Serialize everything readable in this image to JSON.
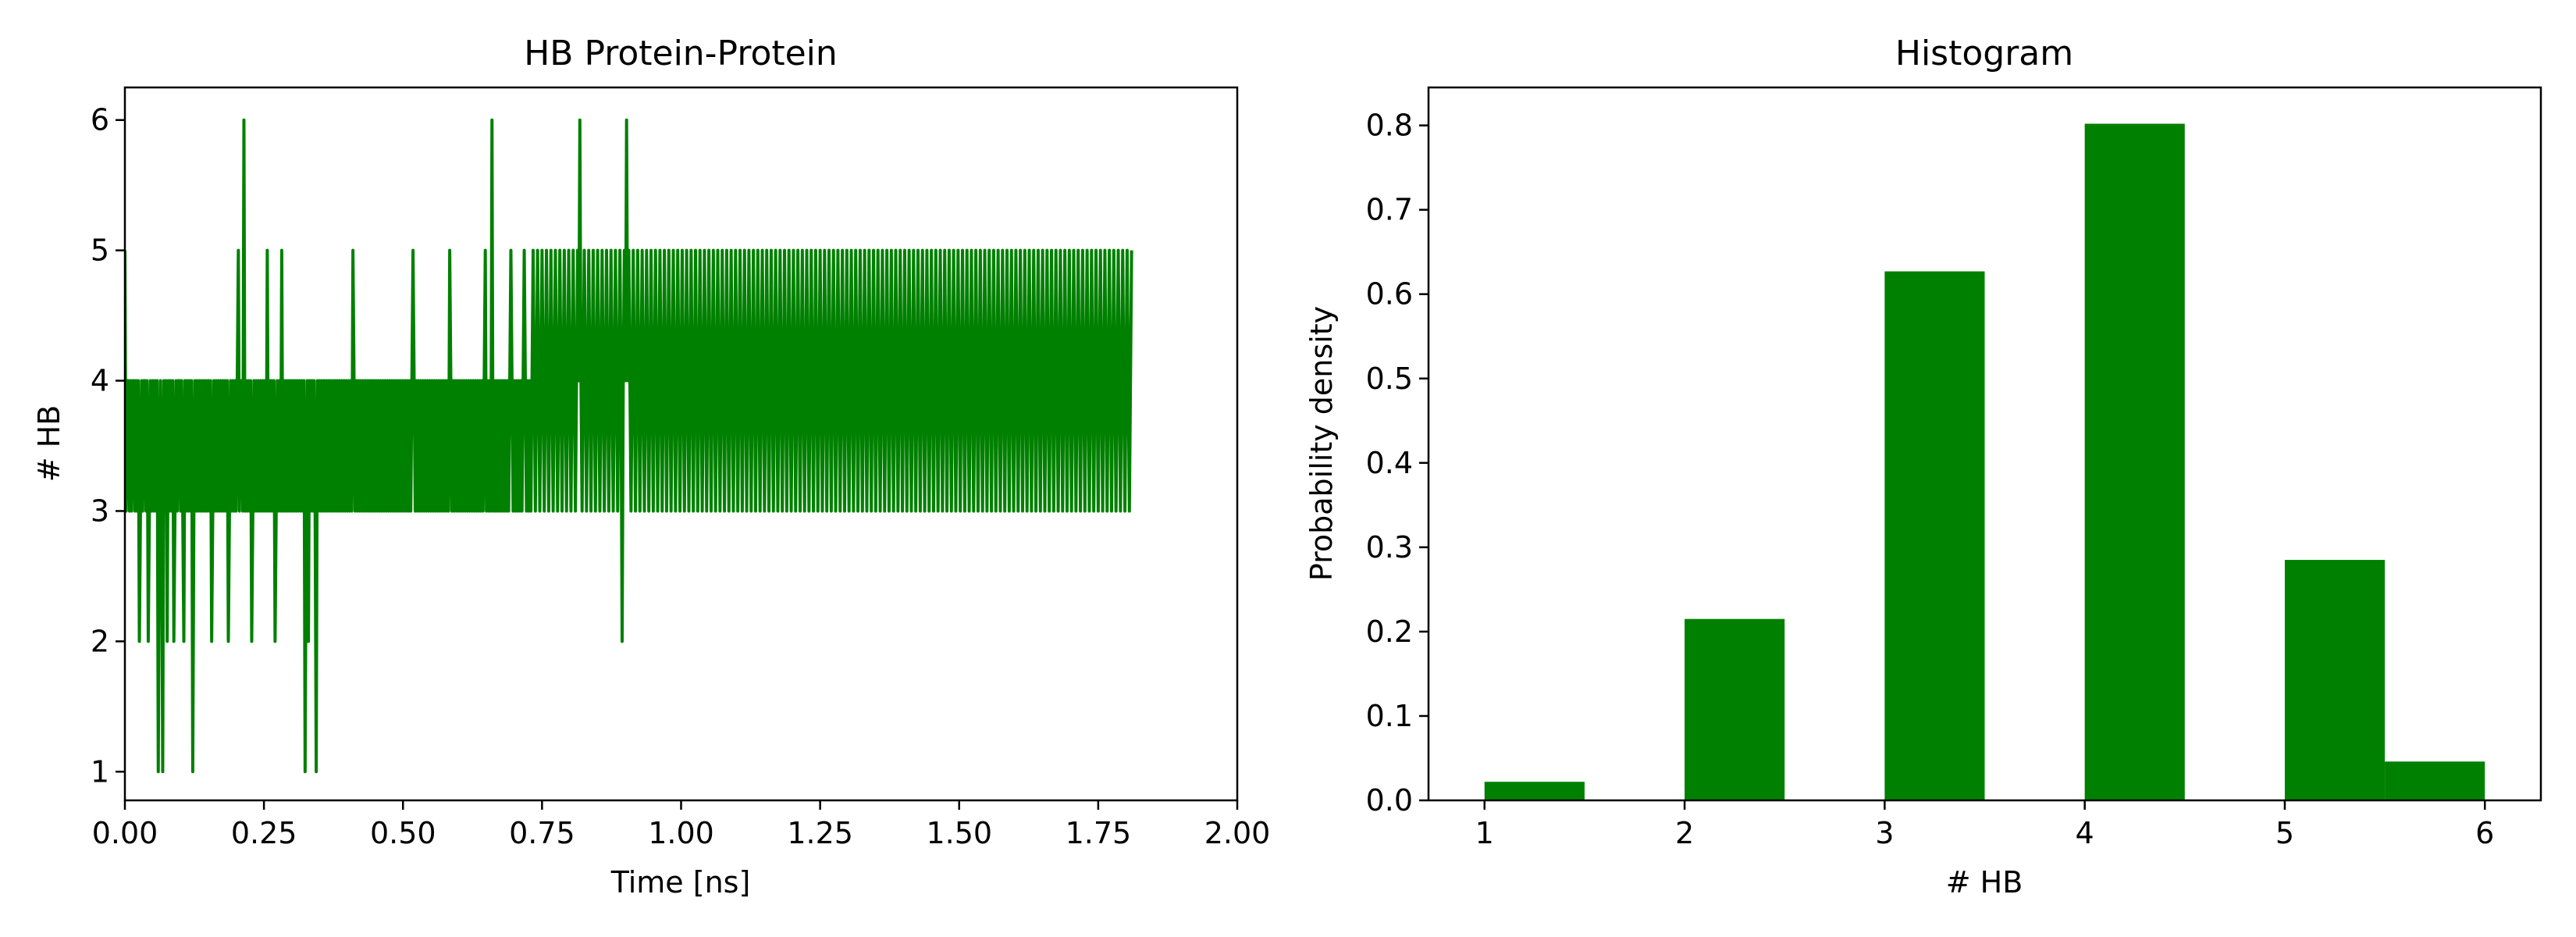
{
  "chart_data": [
    {
      "type": "line",
      "title": "HB Protein-Protein",
      "xlabel": "Time [ns]",
      "ylabel": "# HB",
      "xlim": [
        0,
        2.0
      ],
      "ylim": [
        0.78,
        6.25
      ],
      "xticks": [
        0.0,
        0.25,
        0.5,
        0.75,
        1.0,
        1.25,
        1.5,
        1.75,
        2.0
      ],
      "xtick_labels": [
        "0.00",
        "0.25",
        "0.50",
        "0.75",
        "1.00",
        "1.25",
        "1.50",
        "1.75",
        "2.00"
      ],
      "yticks": [
        1,
        2,
        3,
        4,
        5,
        6
      ],
      "ytick_labels": [
        "1",
        "2",
        "3",
        "4",
        "5",
        "6"
      ],
      "grid": false,
      "color": "#008000",
      "x_step": 0.002,
      "x_start": 0.0,
      "series": [
        {
          "values": [
            5,
            3,
            4,
            4,
            3,
            4,
            3,
            4,
            4,
            3,
            4,
            3,
            4,
            2,
            3,
            4,
            3,
            4,
            4,
            3,
            4,
            2,
            3,
            4,
            3,
            4,
            3,
            4,
            3,
            4,
            1,
            3,
            4,
            3,
            1,
            4,
            3,
            4,
            2,
            4,
            3,
            4,
            3,
            4,
            2,
            3,
            4,
            3,
            4,
            4,
            3,
            4,
            3,
            2,
            4,
            3,
            4,
            3,
            4,
            3,
            4,
            1,
            3,
            4,
            3,
            4,
            3,
            4,
            3,
            4,
            3,
            4,
            3,
            4,
            3,
            4,
            3,
            4,
            2,
            3,
            4,
            3,
            4,
            3,
            4,
            3,
            4,
            3,
            4,
            3,
            4,
            3,
            4,
            2,
            3,
            4,
            3,
            4,
            3,
            4,
            3,
            4,
            5,
            3,
            4,
            4,
            3,
            6,
            3,
            4,
            3,
            4,
            3,
            4,
            2,
            3,
            4,
            3,
            4,
            3,
            4,
            3,
            4,
            3,
            4,
            3,
            4,
            3,
            5,
            3,
            4,
            3,
            4,
            3,
            4,
            2,
            3,
            4,
            3,
            4,
            3,
            5,
            3,
            4,
            3,
            4,
            3,
            4,
            3,
            4,
            3,
            4,
            3,
            4,
            3,
            4,
            3,
            4,
            3,
            4,
            3,
            4,
            1,
            3,
            4,
            2,
            4,
            3,
            4,
            3,
            4,
            3,
            1,
            4,
            3,
            4,
            3,
            4,
            3,
            4,
            3,
            4,
            3,
            4,
            3,
            4,
            3,
            4,
            3,
            4,
            3,
            4,
            3,
            4,
            3,
            4,
            3,
            4,
            3,
            4,
            3,
            4,
            3,
            4,
            3,
            5,
            4,
            3,
            4,
            3,
            4,
            3,
            4,
            3,
            4,
            3,
            4,
            3,
            4,
            3,
            4,
            3,
            4,
            3,
            4,
            3,
            4,
            3,
            4,
            3,
            4,
            3,
            4,
            3,
            4,
            3,
            4,
            3,
            4,
            3,
            4,
            3,
            4,
            3,
            4,
            3,
            4,
            3,
            4,
            3,
            4,
            3,
            4,
            3,
            4,
            3,
            4,
            3,
            4,
            5,
            4,
            3,
            4,
            3,
            4,
            3,
            4,
            3,
            4,
            3,
            4,
            3,
            4,
            3,
            4,
            3,
            4,
            3,
            4,
            3,
            4,
            3,
            4,
            3,
            4,
            3,
            4,
            3,
            4,
            3,
            4,
            3,
            5,
            4,
            3,
            4,
            3,
            4,
            3,
            4,
            3,
            4,
            3,
            4,
            3,
            4,
            3,
            4,
            3,
            4,
            3,
            4,
            3,
            4,
            3,
            4,
            3,
            4,
            3,
            4,
            3,
            4,
            3,
            4,
            5,
            3,
            4,
            3,
            4,
            3,
            6,
            3,
            4,
            3,
            4,
            3,
            4,
            3,
            4,
            3,
            4,
            3,
            4,
            3,
            4,
            3,
            4,
            5,
            4,
            3,
            4,
            3,
            4,
            3,
            4,
            3,
            4,
            3,
            4,
            5,
            4,
            3,
            4,
            3,
            4,
            3,
            4,
            5,
            4,
            3,
            4,
            5,
            4,
            3,
            4,
            5,
            4,
            3,
            4,
            5,
            4,
            3,
            4,
            5,
            4,
            3,
            4,
            5,
            4,
            3,
            4,
            5,
            4,
            3,
            4,
            5,
            4,
            3,
            4,
            5,
            4,
            3,
            4,
            5,
            4,
            3,
            4,
            5,
            4,
            6,
            4,
            3,
            4,
            5,
            4,
            3,
            4,
            5,
            4,
            3,
            4,
            5,
            4,
            3,
            4,
            5,
            4,
            3,
            4,
            5,
            4,
            3,
            4,
            5,
            4,
            3,
            4,
            5,
            4,
            3,
            4,
            5,
            4,
            3,
            4,
            5,
            4,
            2,
            4,
            5,
            4,
            6,
            4,
            5,
            4,
            3,
            4,
            5,
            4,
            3,
            4,
            5,
            4,
            3,
            4,
            5,
            4,
            3,
            4,
            5,
            4,
            3,
            4,
            5,
            4,
            3,
            4,
            5,
            4,
            3,
            4,
            5,
            4,
            3,
            4,
            5,
            4,
            3,
            4,
            5,
            4,
            3,
            4,
            5,
            4,
            3,
            4,
            5,
            4,
            3,
            4,
            5,
            4,
            3,
            4,
            5,
            4,
            3,
            4,
            5,
            4,
            3,
            4,
            5,
            4,
            3,
            4,
            5,
            4,
            3,
            4,
            5,
            4,
            3,
            4,
            5,
            4,
            3,
            4,
            5,
            4,
            3,
            4,
            5,
            4,
            3,
            4,
            5,
            4,
            3,
            4,
            5,
            4,
            3,
            4,
            5,
            4,
            3,
            4,
            5,
            4,
            3,
            4,
            5,
            4,
            3,
            4,
            5,
            4,
            3,
            4,
            5,
            4,
            3,
            4,
            5,
            4,
            3,
            4,
            5,
            4,
            3,
            4,
            5,
            4,
            3,
            4,
            5,
            4,
            3,
            4,
            5,
            4,
            3,
            4,
            5,
            4,
            3,
            4,
            5,
            4,
            3,
            4,
            5,
            4,
            3,
            4,
            5,
            4,
            3,
            4,
            5,
            4,
            3,
            4,
            5,
            4,
            3,
            4,
            5,
            4,
            3,
            4,
            5,
            4,
            3,
            4,
            5,
            4,
            3,
            4,
            5,
            4,
            3,
            4,
            5,
            4,
            3,
            4,
            5,
            4,
            3,
            4,
            5,
            4,
            3,
            4,
            5,
            4,
            3,
            4,
            5,
            4,
            3,
            4,
            5,
            4,
            3,
            4,
            5,
            4,
            3,
            4,
            5,
            4,
            3,
            4,
            5,
            4,
            3,
            4,
            5,
            4,
            3,
            4,
            5,
            4,
            3,
            4,
            5,
            4,
            3,
            4,
            5,
            4,
            3,
            4,
            5,
            4,
            3,
            4,
            5,
            4,
            3,
            4,
            5,
            4,
            3,
            4,
            5,
            4,
            3,
            4,
            5,
            4,
            3,
            4,
            5,
            4,
            3,
            4,
            5,
            4,
            3,
            4,
            5,
            4,
            3,
            4,
            5,
            4,
            3,
            4,
            5,
            4,
            3,
            4,
            5,
            4,
            3,
            4,
            5,
            4,
            3,
            4,
            5,
            4,
            3,
            4,
            5,
            4,
            3,
            4,
            5,
            4,
            3,
            4,
            5,
            4,
            3,
            4,
            5,
            4,
            3,
            4,
            5,
            4,
            3,
            4,
            5,
            4,
            3,
            4,
            5,
            4,
            3,
            4,
            5,
            4,
            3,
            4,
            5,
            4,
            3,
            4,
            5,
            4,
            3,
            4,
            5,
            4,
            3,
            4,
            5,
            4,
            3,
            4,
            5,
            4,
            3,
            4,
            5,
            4,
            3,
            4,
            5,
            4,
            3,
            4,
            5,
            4,
            3,
            4,
            5,
            4,
            3,
            4,
            5,
            4,
            3,
            4,
            5,
            4,
            3,
            4,
            5,
            4,
            3,
            4,
            5,
            4,
            3,
            4,
            5,
            4,
            3,
            4,
            5,
            4,
            3,
            4,
            5,
            4,
            3,
            4,
            5,
            4,
            3,
            4,
            5,
            4,
            3,
            4,
            5,
            4,
            3,
            4,
            5,
            4,
            3,
            4,
            5,
            4,
            3,
            4,
            5,
            4,
            3,
            4,
            5,
            4,
            3,
            4,
            5,
            4,
            3,
            4,
            5,
            4,
            3,
            4,
            5,
            4,
            3,
            4,
            5,
            4,
            3,
            4,
            5,
            4,
            3,
            4,
            5,
            4,
            3,
            4,
            5,
            4,
            3,
            4,
            5,
            4,
            3,
            4,
            5,
            4,
            3,
            4,
            5,
            4,
            3,
            4,
            5,
            4,
            3,
            4,
            5,
            4,
            3,
            4,
            5,
            4,
            3,
            4,
            5
          ]
        }
      ]
    },
    {
      "type": "bar",
      "title": "Histogram",
      "xlabel": "# HB",
      "ylabel": "Probability density",
      "xlim": [
        0.72,
        6.28
      ],
      "ylim": [
        0,
        0.845
      ],
      "xticks": [
        1,
        2,
        3,
        4,
        5,
        6
      ],
      "xtick_labels": [
        "1",
        "2",
        "3",
        "4",
        "5",
        "6"
      ],
      "yticks": [
        0.0,
        0.1,
        0.2,
        0.3,
        0.4,
        0.5,
        0.6,
        0.7,
        0.8
      ],
      "ytick_labels": [
        "0.0",
        "0.1",
        "0.2",
        "0.3",
        "0.4",
        "0.5",
        "0.6",
        "0.7",
        "0.8"
      ],
      "grid": false,
      "color": "#008000",
      "bins": [
        {
          "x0": 1.0,
          "x1": 1.5,
          "value": 0.022
        },
        {
          "x0": 2.0,
          "x1": 2.5,
          "value": 0.215
        },
        {
          "x0": 3.0,
          "x1": 3.5,
          "value": 0.627
        },
        {
          "x0": 4.0,
          "x1": 4.5,
          "value": 0.802
        },
        {
          "x0": 5.0,
          "x1": 5.5,
          "value": 0.285
        },
        {
          "x0": 5.5,
          "x1": 6.0,
          "value": 0.046
        }
      ]
    }
  ]
}
